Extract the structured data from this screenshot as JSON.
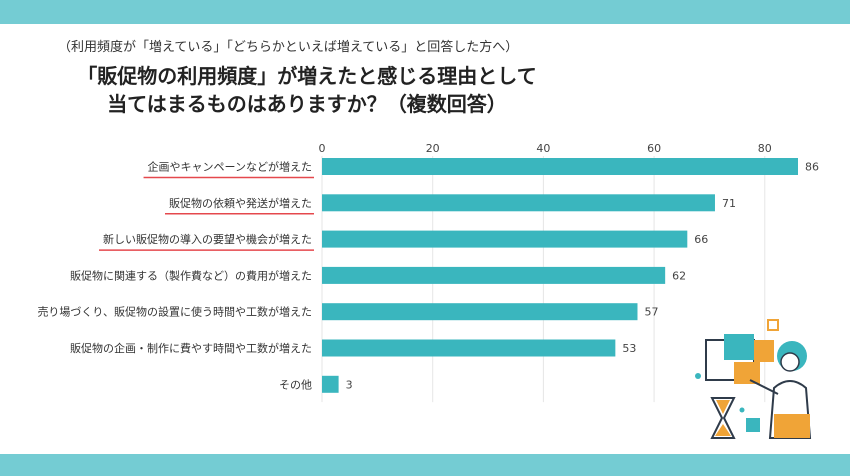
{
  "header": {
    "subtitle": "（利用頻度が「増えている」「どちらかといえば増えている」と回答した方へ）",
    "title_line1": "「販促物の利用頻度」が増えたと感じる理由として",
    "title_line2": "当てはまるものはありますか？（複数回答）"
  },
  "colors": {
    "band": "#74ccd3",
    "bar": "#3ab6be",
    "underline": "#e5484d",
    "grid": "#e6e6e6"
  },
  "chart_data": {
    "type": "bar",
    "orientation": "horizontal",
    "categories": [
      "企画やキャンペーンなどが増えた",
      "販促物の依頼や発送が増えた",
      "新しい販促物の導入の要望や機会が増えた",
      "販促物に関連する（製作費など）の費用が増えた",
      "売り場づくり、販促物の設置に使う時間や工数が増えた",
      "販促物の企画・制作に費やす時間や工数が増えた",
      "その他"
    ],
    "values": [
      86,
      71,
      66,
      62,
      57,
      53,
      3
    ],
    "underlined": [
      true,
      true,
      true,
      false,
      false,
      false,
      false
    ],
    "xlim": [
      0,
      86
    ],
    "ticks": [
      0,
      20,
      40,
      60,
      80
    ],
    "grid": true,
    "axis_position": "top"
  }
}
